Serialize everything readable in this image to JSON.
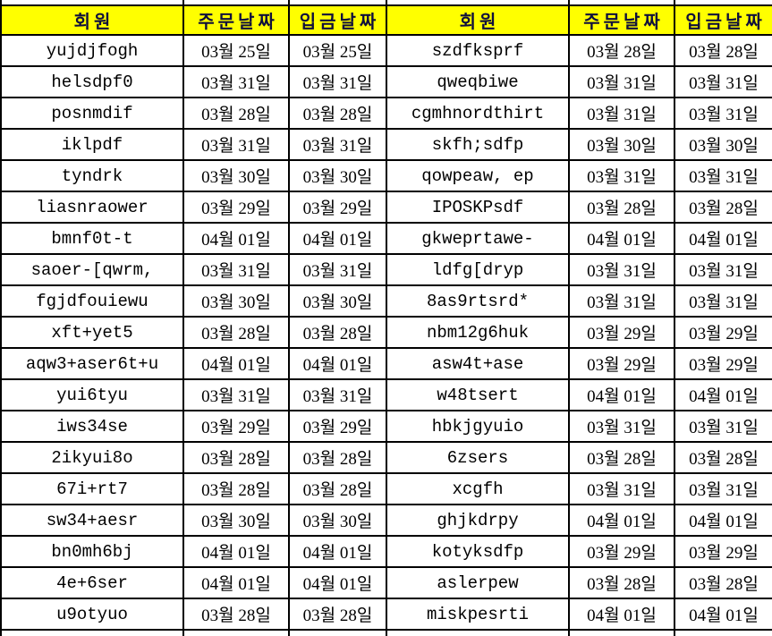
{
  "table": {
    "column_headers": [
      "회원",
      "주문날짜",
      "입금날짜",
      "회원",
      "주문날짜",
      "입금날짜"
    ],
    "rows": [
      [
        "yujdjfogh",
        "03월 25일",
        "03월 25일",
        "szdfksprf",
        "03월 28일",
        "03월 28일"
      ],
      [
        "helsdpf0",
        "03월 31일",
        "03월 31일",
        "qweqbiwe",
        "03월 31일",
        "03월 31일"
      ],
      [
        "posnmdif",
        "03월 28일",
        "03월 28일",
        "cgmhnordthirt",
        "03월 31일",
        "03월 31일"
      ],
      [
        "iklpdf",
        "03월 31일",
        "03월 31일",
        "skfh;sdfp",
        "03월 30일",
        "03월 30일"
      ],
      [
        "tyndrk",
        "03월 30일",
        "03월 30일",
        "qowpeaw, ep",
        "03월 31일",
        "03월 31일"
      ],
      [
        "liasnraower",
        "03월 29일",
        "03월 29일",
        "IPOSKPsdf",
        "03월 28일",
        "03월 28일"
      ],
      [
        "bmnf0t-t",
        "04월 01일",
        "04월 01일",
        "gkweprtawe-",
        "04월 01일",
        "04월 01일"
      ],
      [
        "saoer-[qwrm,",
        "03월 31일",
        "03월 31일",
        "ldfg[dryp",
        "03월 31일",
        "03월 31일"
      ],
      [
        "fgjdfouiewu",
        "03월 30일",
        "03월 30일",
        "8as9rtsrd*",
        "03월 31일",
        "03월 31일"
      ],
      [
        "xft+yet5",
        "03월 28일",
        "03월 28일",
        "nbm12g6huk",
        "03월 29일",
        "03월 29일"
      ],
      [
        "aqw3+aser6t+u",
        "04월 01일",
        "04월 01일",
        "asw4t+ase",
        "03월 29일",
        "03월 29일"
      ],
      [
        "yui6tyu",
        "03월 31일",
        "03월 31일",
        "w48tsert",
        "04월 01일",
        "04월 01일"
      ],
      [
        "iws34se",
        "03월 29일",
        "03월 29일",
        "hbkjgyuio",
        "03월 31일",
        "03월 31일"
      ],
      [
        "2ikyui8o",
        "03월 28일",
        "03월 28일",
        "6zsers",
        "03월 28일",
        "03월 28일"
      ],
      [
        "67i+rt7",
        "03월 28일",
        "03월 28일",
        "xcgfh",
        "03월 31일",
        "03월 31일"
      ],
      [
        "sw34+aesr",
        "03월 30일",
        "03월 30일",
        "ghjkdrpy",
        "04월 01일",
        "04월 01일"
      ],
      [
        "bn0mh6bj",
        "04월 01일",
        "04월 01일",
        "kotyksdfp",
        "03월 29일",
        "03월 29일"
      ],
      [
        "4e+6ser",
        "04월 01일",
        "04월 01일",
        "aslerpew",
        "03월 28일",
        "03월 28일"
      ],
      [
        "u9otyuo",
        "03월 28일",
        "03월 28일",
        "miskpesrti",
        "04월 01일",
        "04월 01일"
      ]
    ],
    "colors": {
      "header_bg": "#FFFF00",
      "header_text": "#10103C",
      "body_text": "#000000",
      "border": "#000000"
    }
  }
}
